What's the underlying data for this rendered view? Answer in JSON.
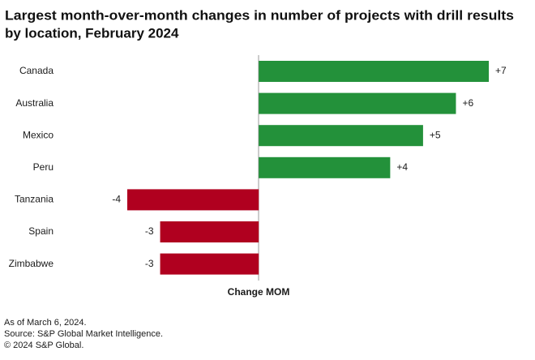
{
  "chart_data": {
    "type": "hbar",
    "title": [
      "Largest month-over-month changes in number of projects with drill results",
      "by location, February 2024"
    ],
    "x_label": "Change MOM",
    "categories": [
      "Canada",
      "Australia",
      "Mexico",
      "Peru",
      "Tanzania",
      "Spain",
      "Zimbabwe"
    ],
    "values": [
      7,
      6,
      5,
      4,
      -4,
      -3,
      -3
    ],
    "value_labels": [
      "+7",
      "+6",
      "+5",
      "+4",
      "-4",
      "-3",
      "-3"
    ],
    "colors": [
      "#23913a",
      "#23913a",
      "#23913a",
      "#23913a",
      "#b0001f",
      "#b0001f",
      "#b0001f"
    ],
    "xlim": [
      -4,
      7
    ],
    "footnotes": [
      "As of March 6, 2024.",
      "Source: S&P Global Market Intelligence.",
      "© 2024 S&P Global."
    ]
  }
}
